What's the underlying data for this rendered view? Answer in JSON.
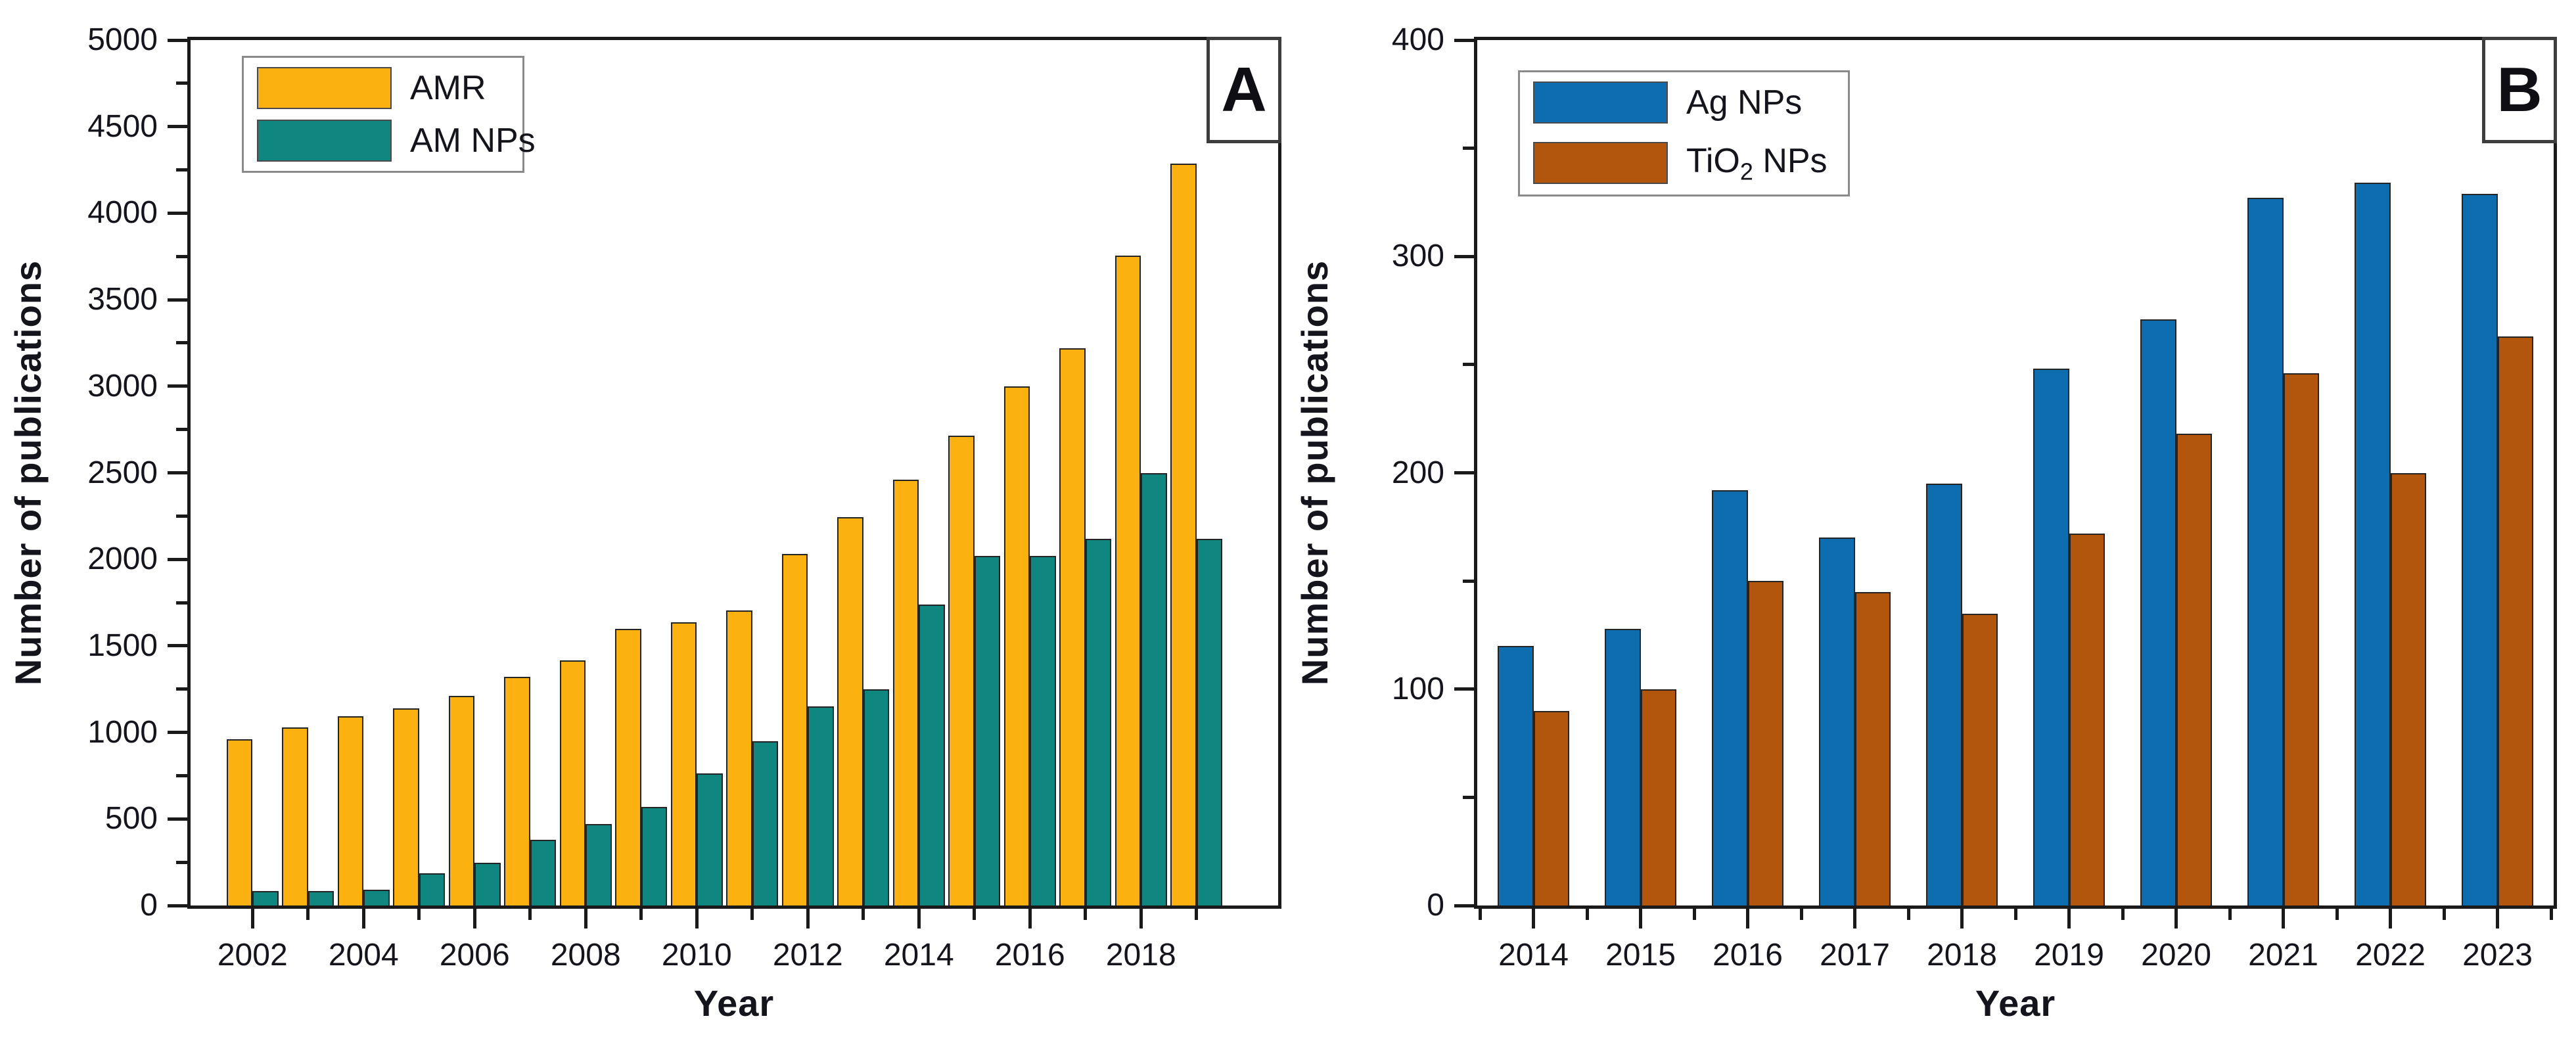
{
  "figure": {
    "panels": [
      {
        "corner_label": "A",
        "y_axis": {
          "label": "Number of publications",
          "min": 0,
          "max": 5000,
          "major_step": 500,
          "minor_step": 250
        },
        "x_axis": {
          "label": "Year",
          "labeled_years": [
            "2002",
            "2004",
            "2006",
            "2008",
            "2010",
            "2012",
            "2014",
            "2016",
            "2018"
          ]
        },
        "legend": [
          {
            "label": "AMR",
            "label_sub": "",
            "label_post": "",
            "color": "#FBB110"
          },
          {
            "label": "AM NPs",
            "label_sub": "",
            "label_post": "",
            "color": "#108680"
          }
        ]
      },
      {
        "corner_label": "B",
        "y_axis": {
          "label": "Number of publications",
          "min": 0,
          "max": 400,
          "major_step": 100,
          "minor_step": 50
        },
        "x_axis": {
          "label": "Year",
          "labeled_years": [
            "2014",
            "2015",
            "2016",
            "2017",
            "2018",
            "2019",
            "2020",
            "2021",
            "2022",
            "2023"
          ]
        },
        "legend": [
          {
            "label": "Ag NPs",
            "label_sub": "",
            "label_post": "",
            "color": "#0E6DAF"
          },
          {
            "label": "TiO",
            "label_sub": "2",
            "label_post": " NPs",
            "color": "#B2560D"
          }
        ]
      }
    ]
  },
  "chart_data": [
    {
      "type": "bar",
      "title": "Panel A",
      "xlabel": "Year",
      "ylabel": "Number of publications",
      "ylim": [
        0,
        5000
      ],
      "grid": false,
      "legend_position": "top-left",
      "categories": [
        "2002",
        "2003",
        "2004",
        "2005",
        "2006",
        "2007",
        "2008",
        "2009",
        "2010",
        "2011",
        "2012",
        "2013",
        "2014",
        "2015",
        "2016",
        "2017",
        "2018",
        "2019"
      ],
      "series": [
        {
          "name": "AMR",
          "color": "#FBB110",
          "values": [
            960,
            1030,
            1095,
            1140,
            1210,
            1320,
            1415,
            1600,
            1635,
            1705,
            2030,
            2245,
            2460,
            2715,
            3000,
            3220,
            3755,
            4285
          ]
        },
        {
          "name": "AM NPs",
          "color": "#108680",
          "values": [
            85,
            85,
            90,
            185,
            245,
            380,
            470,
            570,
            765,
            950,
            1150,
            1250,
            1740,
            2020,
            2020,
            2120,
            2500,
            2120
          ]
        }
      ]
    },
    {
      "type": "bar",
      "title": "Panel B",
      "xlabel": "Year",
      "ylabel": "Number of publications",
      "ylim": [
        0,
        400
      ],
      "grid": false,
      "legend_position": "top-left",
      "categories": [
        "2014",
        "2015",
        "2016",
        "2017",
        "2018",
        "2019",
        "2020",
        "2021",
        "2022",
        "2023"
      ],
      "series": [
        {
          "name": "Ag NPs",
          "color": "#0E6DAF",
          "values": [
            120,
            128,
            192,
            170,
            195,
            248,
            271,
            327,
            334,
            329
          ]
        },
        {
          "name": "TiO2 NPs",
          "color": "#B2560D",
          "values": [
            90,
            100,
            150,
            145,
            135,
            172,
            218,
            246,
            200,
            263
          ]
        }
      ]
    }
  ]
}
